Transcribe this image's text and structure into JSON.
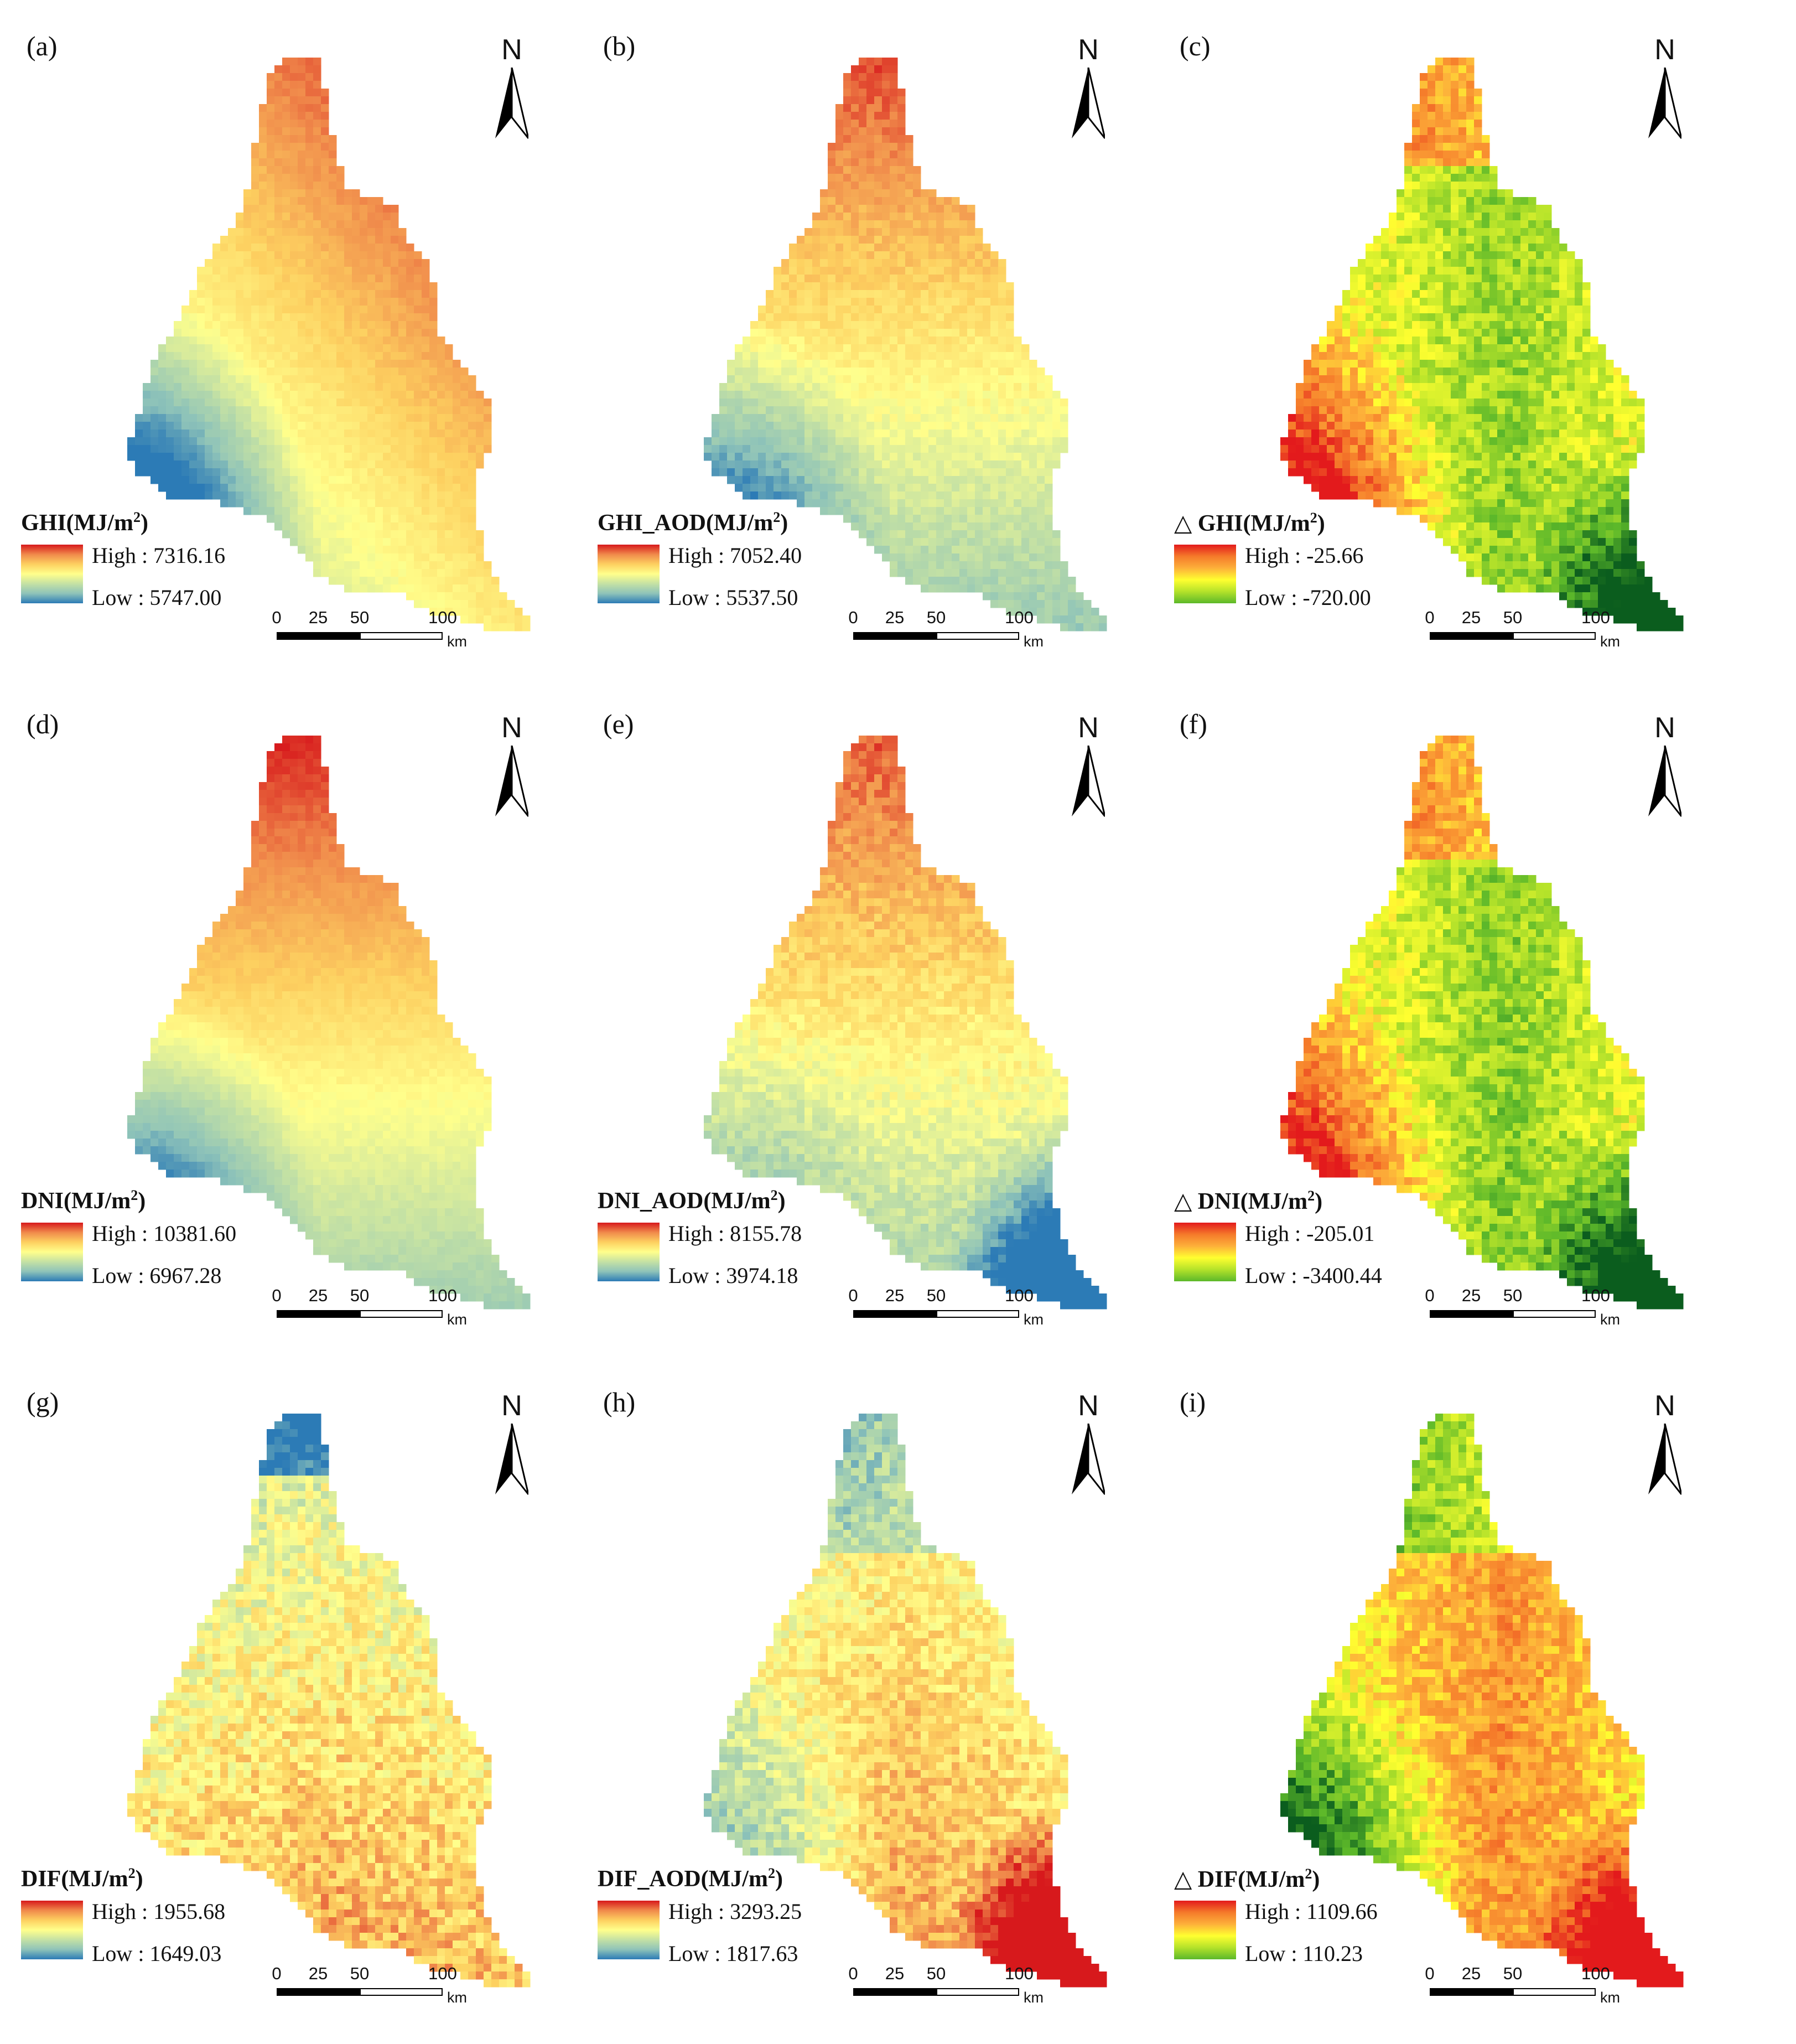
{
  "panels": [
    {
      "letter": "(a)",
      "var": "GHI",
      "suffix": "",
      "prefix": "",
      "high": "High : 7316.16",
      "low": "Low : 5747.00",
      "ramp": "rdylbu",
      "pattern": "ghi"
    },
    {
      "letter": "(b)",
      "var": "GHI_AOD",
      "suffix": "",
      "prefix": "",
      "high": "High : 7052.40",
      "low": "Low : 5537.50",
      "ramp": "rdylbu",
      "pattern": "ghi_aod"
    },
    {
      "letter": "(c)",
      "var": "GHI",
      "suffix": "",
      "prefix": "△ ",
      "high": "High : -25.66",
      "low": "Low : -720.00",
      "ramp": "rdylgn",
      "pattern": "dghi"
    },
    {
      "letter": "(d)",
      "var": "DNI",
      "suffix": "",
      "prefix": "",
      "high": "High : 10381.60",
      "low": "Low : 6967.28",
      "ramp": "rdylbu",
      "pattern": "dni"
    },
    {
      "letter": "(e)",
      "var": "DNI_AOD",
      "suffix": "",
      "prefix": "",
      "high": "High : 8155.78",
      "low": "Low : 3974.18",
      "ramp": "rdylbu",
      "pattern": "dni_aod"
    },
    {
      "letter": "(f)",
      "var": "DNI",
      "suffix": "",
      "prefix": "△ ",
      "high": "High : -205.01",
      "low": "Low : -3400.44",
      "ramp": "rdylgn",
      "pattern": "ddni"
    },
    {
      "letter": "(g)",
      "var": "DIF",
      "suffix": "",
      "prefix": "",
      "high": "High : 1955.68",
      "low": "Low : 1649.03",
      "ramp": "rdylbu",
      "pattern": "dif"
    },
    {
      "letter": "(h)",
      "var": "DIF_AOD",
      "suffix": "",
      "prefix": "",
      "high": "High : 3293.25",
      "low": "Low : 1817.63",
      "ramp": "rdylbu",
      "pattern": "dif_aod"
    },
    {
      "letter": "(i)",
      "var": "DIF",
      "suffix": "",
      "prefix": "△ ",
      "high": "High : 1109.66",
      "low": "Low : 110.23",
      "ramp": "rdylgn",
      "pattern": "ddif"
    }
  ],
  "units": {
    "open": "(MJ/m",
    "exp": "2",
    "close": ")"
  },
  "north_label": "N",
  "scale": {
    "ticks": [
      "0",
      "25",
      "50",
      "100"
    ],
    "unit": "km"
  },
  "colors": {
    "rdylbu": [
      "#d7191c",
      "#f08a4b",
      "#fdd060",
      "#ffff8c",
      "#c4e1a4",
      "#8ec3b9",
      "#2c7bb6"
    ],
    "rdylgn": [
      "#e31a1c",
      "#f57a2a",
      "#fdb03a",
      "#ffff30",
      "#b4e22a",
      "#5cb82a",
      "#0b5d1e"
    ]
  }
}
